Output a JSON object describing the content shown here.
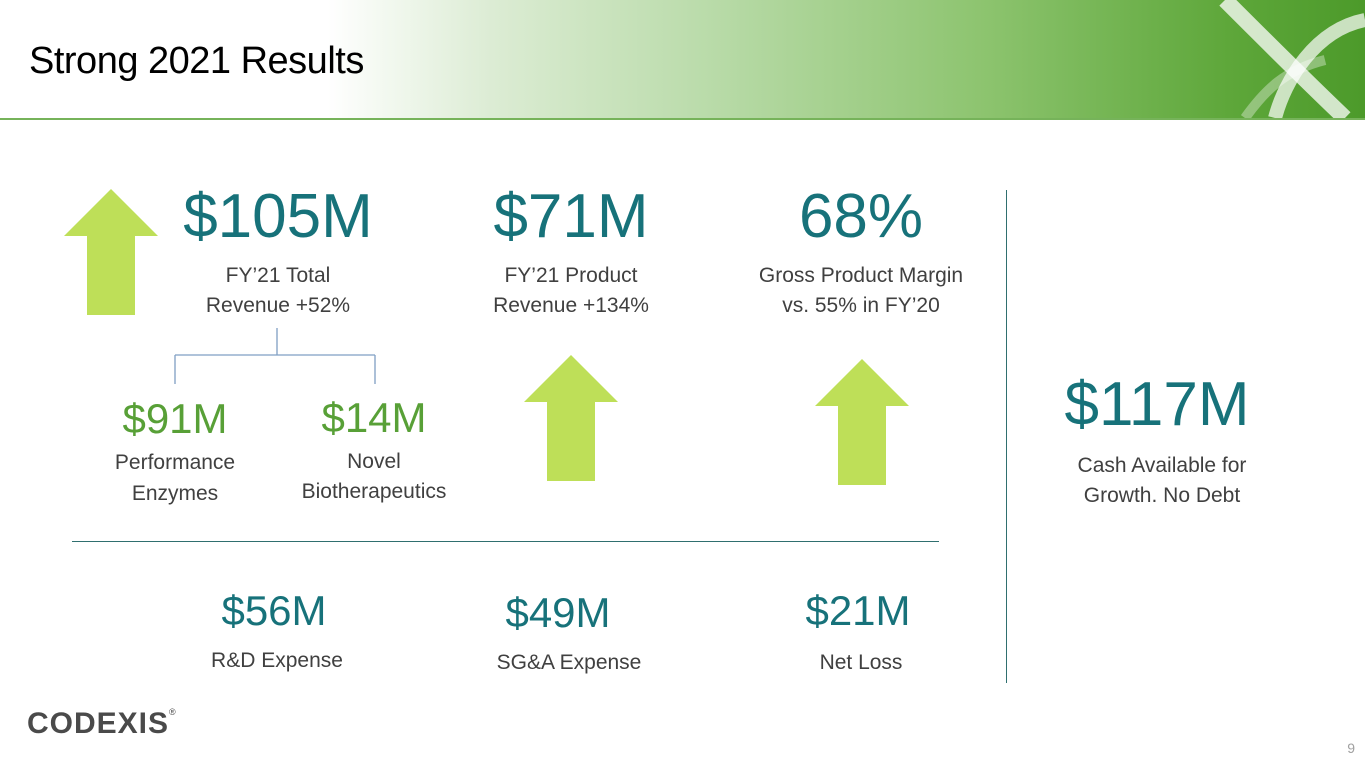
{
  "slide": {
    "title": "Strong 2021 Results",
    "page_number": "9"
  },
  "colors": {
    "teal": "#17727a",
    "green": "#58a037",
    "arrow": "#bedf58"
  },
  "metrics": {
    "total_revenue": {
      "value": "$105M",
      "label_line1": "FY’21 Total",
      "label_line2": "Revenue +52%"
    },
    "product_revenue": {
      "value": "$71M",
      "label_line1": "FY’21 Product",
      "label_line2": "Revenue +134%"
    },
    "gross_margin": {
      "value": "68%",
      "label_line1": "Gross Product Margin",
      "label_line2": "vs. 55% in FY’20"
    },
    "performance_enzymes": {
      "value": "$91M",
      "label_line1": "Performance",
      "label_line2": "Enzymes"
    },
    "novel_biotherapeutics": {
      "value": "$14M",
      "label_line1": "Novel",
      "label_line2": "Biotherapeutics"
    },
    "cash": {
      "value": "$117M",
      "label_line1": "Cash Available for",
      "label_line2": "Growth. No Debt"
    },
    "rd_expense": {
      "value": "$56M",
      "label": "R&D Expense"
    },
    "sga_expense": {
      "value": "$49M",
      "label": "SG&A Expense"
    },
    "net_loss": {
      "value": "$21M",
      "label": "Net Loss"
    }
  },
  "logo": {
    "text": "CODEXIS",
    "mark": "®"
  }
}
